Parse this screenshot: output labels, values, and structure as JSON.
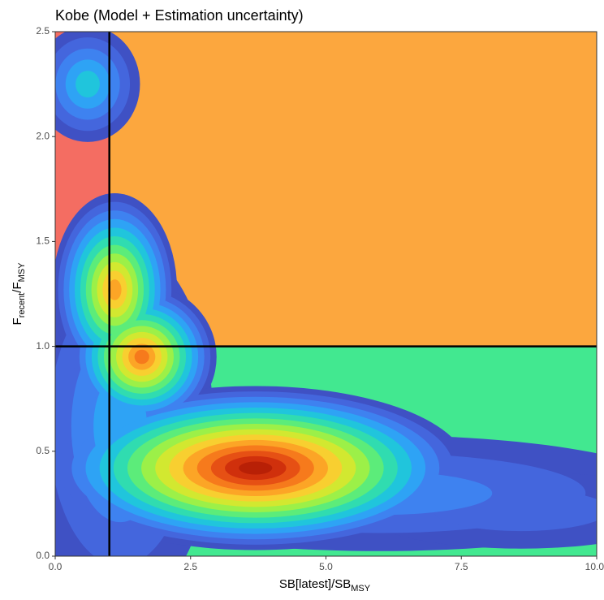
{
  "chart_data": {
    "type": "kobe",
    "title": "Kobe (Model + Estimation uncertainty)",
    "xlabel_parts": [
      "SB[latest]",
      "/",
      "SB",
      "MSY"
    ],
    "ylabel_parts": [
      "F",
      "recent",
      "/",
      "F",
      "MSY"
    ],
    "xlim": [
      0,
      10
    ],
    "ylim": [
      0,
      2.5
    ],
    "xticks": [
      {
        "value": 0,
        "label": "0.0"
      },
      2.5,
      {
        "value": 5,
        "label": "5.0"
      },
      7.5,
      {
        "value": 10,
        "label": "10.0"
      }
    ],
    "yticks": [
      {
        "value": 0,
        "label": "0.0"
      },
      0.5,
      {
        "value": 1,
        "label": "1.0"
      },
      1.5,
      {
        "value": 2,
        "label": "2.0"
      },
      2.5
    ],
    "vline": 1,
    "hline": 1,
    "regions": {
      "low_f_low_b": "#fde95e",
      "high_f_low_b": "#f46d62",
      "high_f_high_b": "#fca73e",
      "low_f_high_b": "#42e890"
    },
    "colors": [
      "#3f51c4",
      "#4466dd",
      "#3e82f0",
      "#2ea3f5",
      "#20c5dc",
      "#30dcb0",
      "#5cec7a",
      "#9cf048",
      "#d2e830",
      "#f8cf30",
      "#fca526",
      "#f67a1c",
      "#e65014",
      "#d0300c",
      "#b82006"
    ],
    "density": [
      {
        "x": 0.6,
        "y": 2.25,
        "sx": 0.42,
        "sy": 0.12,
        "peak": 4
      },
      {
        "x": 1.2,
        "y": 0.62,
        "sx": 0.75,
        "sy": 0.38,
        "peak": 3
      },
      {
        "x": 1.1,
        "y": 1.27,
        "sx": 0.5,
        "sy": 0.2,
        "peak": 10
      },
      {
        "x": 1.6,
        "y": 0.95,
        "sx": 0.6,
        "sy": 0.15,
        "peak": 11
      },
      {
        "x": 3.7,
        "y": 0.42,
        "sx": 1.7,
        "sy": 0.17,
        "peak": 14
      },
      {
        "x": 6.0,
        "y": 0.3,
        "sx": 2.4,
        "sy": 0.12,
        "peak": 2
      },
      {
        "x": 8.6,
        "y": 0.22,
        "sx": 1.3,
        "sy": 0.08,
        "peak": 1
      }
    ]
  }
}
